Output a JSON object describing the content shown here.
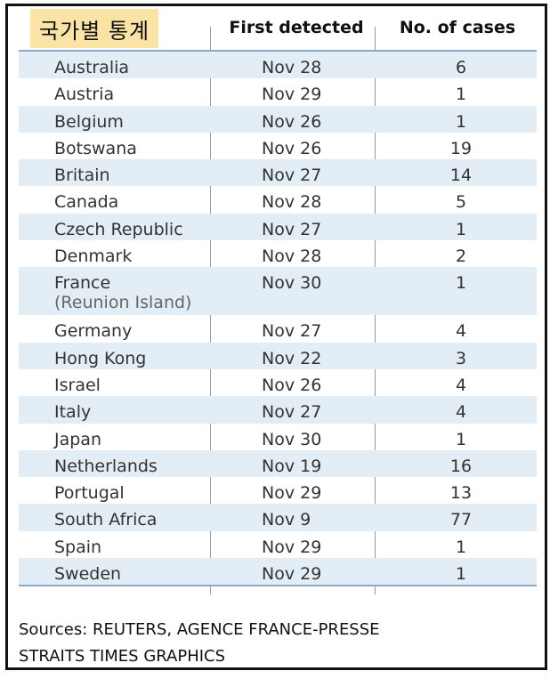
{
  "title_badge": "국가별 통계",
  "columns": {
    "country": "",
    "first_detected": "First detected",
    "cases": "No. of cases"
  },
  "chart_data": {
    "type": "table",
    "title": "국가별 통계",
    "columns": [
      "",
      "First detected",
      "No. of cases"
    ],
    "rows": [
      {
        "country": "Australia",
        "note": "",
        "first_detected": "Nov 28",
        "cases": 6
      },
      {
        "country": "Austria",
        "note": "",
        "first_detected": "Nov 29",
        "cases": 1
      },
      {
        "country": "Belgium",
        "note": "",
        "first_detected": "Nov 26",
        "cases": 1
      },
      {
        "country": "Botswana",
        "note": "",
        "first_detected": "Nov 26",
        "cases": 19
      },
      {
        "country": "Britain",
        "note": "",
        "first_detected": "Nov 27",
        "cases": 14
      },
      {
        "country": "Canada",
        "note": "",
        "first_detected": "Nov 28",
        "cases": 5
      },
      {
        "country": "Czech Republic",
        "note": "",
        "first_detected": "Nov 27",
        "cases": 1
      },
      {
        "country": "Denmark",
        "note": "",
        "first_detected": "Nov 28",
        "cases": 2
      },
      {
        "country": "France",
        "note": "(Reunion Island)",
        "first_detected": "Nov 30",
        "cases": 1
      },
      {
        "country": "Germany",
        "note": "",
        "first_detected": "Nov 27",
        "cases": 4
      },
      {
        "country": "Hong Kong",
        "note": "",
        "first_detected": "Nov 22",
        "cases": 3
      },
      {
        "country": "Israel",
        "note": "",
        "first_detected": "Nov 26",
        "cases": 4
      },
      {
        "country": "Italy",
        "note": "",
        "first_detected": "Nov 27",
        "cases": 4
      },
      {
        "country": "Japan",
        "note": "",
        "first_detected": "Nov 30",
        "cases": 1
      },
      {
        "country": "Netherlands",
        "note": "",
        "first_detected": "Nov 19",
        "cases": 16
      },
      {
        "country": "Portugal",
        "note": "",
        "first_detected": "Nov 29",
        "cases": 13
      },
      {
        "country": "South Africa",
        "note": "",
        "first_detected": "Nov 9",
        "cases": 77
      },
      {
        "country": "Spain",
        "note": "",
        "first_detected": "Nov 29",
        "cases": 1
      },
      {
        "country": "Sweden",
        "note": "",
        "first_detected": "Nov 29",
        "cases": 1
      }
    ]
  },
  "sources": {
    "line1": "Sources: REUTERS, AGENCE FRANCE-PRESSE",
    "line2": "STRAITS TIMES GRAPHICS"
  },
  "colors": {
    "row_shade": "#e3edf6",
    "rule": "#8aa9c7",
    "badge": "#fbe3a6",
    "border": "#111111"
  }
}
